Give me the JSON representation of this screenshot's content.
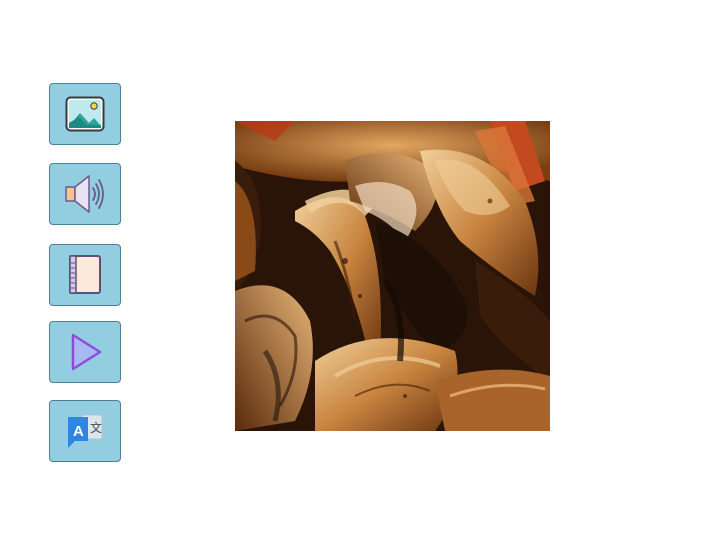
{
  "toolbar": {
    "buttons": [
      {
        "name": "image-button",
        "icon": "image-icon"
      },
      {
        "name": "audio-button",
        "icon": "speaker-icon"
      },
      {
        "name": "notebook-button",
        "icon": "notebook-icon"
      },
      {
        "name": "play-button",
        "icon": "play-icon"
      },
      {
        "name": "translate-button",
        "icon": "translate-icon",
        "glyphs": [
          "A",
          "文"
        ]
      }
    ]
  },
  "photo": {
    "subject": "dried-mushroom-slices",
    "colors": {
      "dark": "#1e0f06",
      "mid": "#7a3f14",
      "light": "#d9a05a",
      "highlight": "#f0cf9a",
      "accent_red": "#b83a18"
    }
  }
}
